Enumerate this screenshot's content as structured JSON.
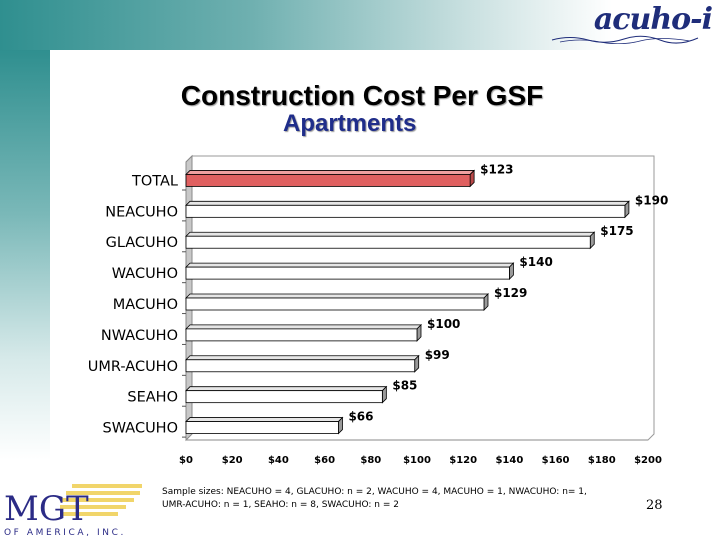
{
  "header": {
    "logo_text": "acuho-i"
  },
  "title": "Construction Cost Per GSF",
  "subtitle": "Apartments",
  "chart_data": {
    "type": "bar",
    "orientation": "horizontal",
    "categories": [
      "TOTAL",
      "NEACUHO",
      "GLACUHO",
      "WACUHO",
      "MACUHO",
      "NWACUHO",
      "UMR-ACUHO",
      "SEAHO",
      "SWACUHO"
    ],
    "values": [
      123,
      190,
      175,
      140,
      129,
      100,
      99,
      85,
      66
    ],
    "data_labels": [
      "$123",
      "$190",
      "$175",
      "$140",
      "$129",
      "$100",
      "$99",
      "$85",
      "$66"
    ],
    "xlim": [
      0,
      200
    ],
    "x_ticks": [
      "$0",
      "$20",
      "$40",
      "$60",
      "$80",
      "$100",
      "$120",
      "$140",
      "$160",
      "$180",
      "$200"
    ],
    "highlight_color": "#e06060",
    "bar_color": "#ffffff",
    "grid": false
  },
  "footnote": {
    "line1": "Sample sizes: NEACUHO = 4, GLACUHO: n = 2, WACUHO = 4,  MACUHO = 1, NWACUHO: n= 1,",
    "line2": "UMR-ACUHO: n = 1, SEAHO: n = 8, SWACUHO: n = 2"
  },
  "page_number": "28",
  "footer_logo": {
    "name": "MGT",
    "tagline": "OF AMERICA, INC."
  }
}
